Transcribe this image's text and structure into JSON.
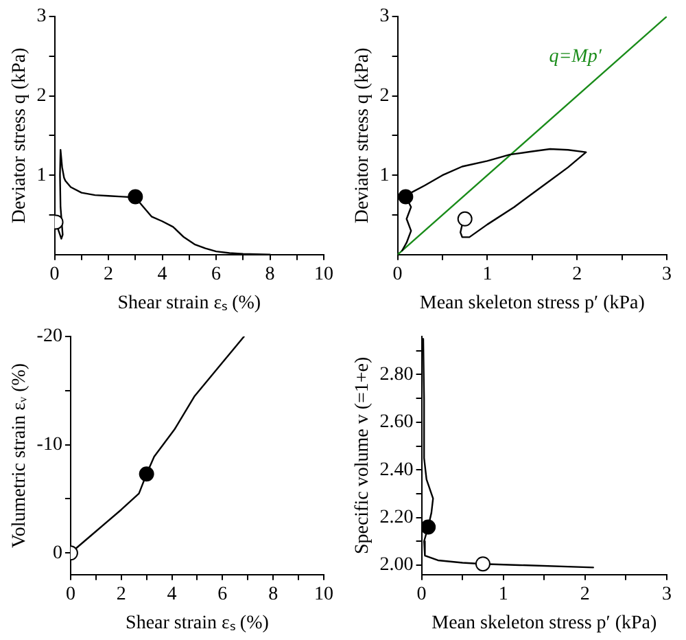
{
  "chart_data": [
    {
      "type": "line",
      "xlabel": "Shear strain εₛ (%)",
      "ylabel": "Deviator stress q (kPa)",
      "xlim": [
        0,
        10
      ],
      "ylim": [
        0,
        3
      ],
      "xticks": [
        0,
        {
          "value": 1,
          "label": null
        },
        2,
        {
          "value": 3,
          "label": null
        },
        4,
        {
          "value": 5,
          "label": null
        },
        6,
        {
          "value": 7,
          "label": null
        },
        8,
        {
          "value": 9,
          "label": null
        },
        10
      ],
      "yticks": [
        {
          "value": 0.5,
          "label": null
        },
        1,
        {
          "value": 1.5,
          "label": null
        },
        2,
        {
          "value": 2.5,
          "label": null
        },
        3
      ],
      "grid": false,
      "legend": false,
      "series": [
        {
          "color": "#000000",
          "x": [
            0.05,
            0.15,
            0.25,
            0.3,
            0.22,
            0.2,
            0.22,
            0.28,
            0.35,
            0.4,
            0.6,
            1,
            1.5,
            2,
            2.5,
            3,
            3.3,
            3.6,
            4,
            4.4,
            4.8,
            5.2,
            5.6,
            6,
            6.5,
            7,
            8
          ],
          "values": [
            0.41,
            0.3,
            0.2,
            0.25,
            0.6,
            1.0,
            1.32,
            1.1,
            0.97,
            0.93,
            0.85,
            0.78,
            0.75,
            0.74,
            0.73,
            0.72,
            0.6,
            0.48,
            0.42,
            0.35,
            0.22,
            0.13,
            0.08,
            0.04,
            0.02,
            0.01,
            0
          ]
        },
        {
          "type": "scatter",
          "marker": "circle",
          "color": "#ffffff",
          "x": [
            0.05
          ],
          "values": [
            0.41
          ]
        },
        {
          "type": "scatter",
          "marker": "circle",
          "color": "#000000",
          "x": [
            3
          ],
          "values": [
            0.73
          ]
        }
      ]
    },
    {
      "type": "line",
      "xlabel": "Mean skeleton stress p′ (kPa)",
      "ylabel": "Deviator stress q (kPa)",
      "xlim": [
        0,
        3
      ],
      "ylim": [
        0,
        3
      ],
      "xticks": [
        0,
        {
          "value": 0.5,
          "label": null
        },
        1,
        {
          "value": 1.5,
          "label": null
        },
        2,
        {
          "value": 2.5,
          "label": null
        },
        3
      ],
      "yticks": [
        {
          "value": 0.5,
          "label": null
        },
        1,
        {
          "value": 1.5,
          "label": null
        },
        2,
        {
          "value": 2.5,
          "label": null
        },
        3
      ],
      "grid": false,
      "legend": false,
      "annotations": [
        "q=Mp′"
      ],
      "series": [
        {
          "color": "#000000",
          "x": [
            0.75,
            0.72,
            0.7,
            0.72,
            0.8,
            1.0,
            1.3,
            1.6,
            1.9,
            2.1,
            1.9,
            1.7,
            1.5,
            1.25,
            1.0,
            0.72,
            0.5,
            0.3,
            0.15,
            0.09,
            0.15,
            0.1,
            0.15,
            0.1,
            0.05
          ],
          "values": [
            0.45,
            0.38,
            0.28,
            0.22,
            0.22,
            0.38,
            0.6,
            0.85,
            1.1,
            1.29,
            1.32,
            1.33,
            1.3,
            1.26,
            1.18,
            1.11,
            1.0,
            0.87,
            0.78,
            0.73,
            0.6,
            0.45,
            0.3,
            0.15,
            0.05
          ]
        },
        {
          "color": "#1a8c1a",
          "x": [
            0,
            3
          ],
          "values": [
            0,
            3
          ]
        },
        {
          "type": "scatter",
          "marker": "circle",
          "color": "#ffffff",
          "x": [
            0.75
          ],
          "values": [
            0.45
          ]
        },
        {
          "type": "scatter",
          "marker": "circle",
          "color": "#000000",
          "x": [
            0.09
          ],
          "values": [
            0.73
          ]
        }
      ]
    },
    {
      "type": "line",
      "xlabel": "Shear strain εₛ (%)",
      "ylabel": "Volumetric strain εᵥ (%)",
      "xlim": [
        0,
        10
      ],
      "ylim": [
        2,
        -20
      ],
      "xticks": [
        0,
        {
          "value": 1,
          "label": null
        },
        2,
        {
          "value": 3,
          "label": null
        },
        4,
        {
          "value": 5,
          "label": null
        },
        6,
        {
          "value": 7,
          "label": null
        },
        8,
        {
          "value": 9,
          "label": null
        },
        10
      ],
      "yticks": [
        0,
        {
          "value": -5,
          "label": null
        },
        -10,
        {
          "value": -15,
          "label": null
        },
        -20
      ],
      "grid": false,
      "legend": false,
      "series": [
        {
          "color": "#000000",
          "x": [
            0,
            0.5,
            1,
            2,
            2.7,
            3,
            3.3,
            4.1,
            4.9,
            6,
            6.85
          ],
          "values": [
            0,
            -1,
            -2,
            -4,
            -5.5,
            -7.3,
            -8.9,
            -11.4,
            -14.5,
            -17.6,
            -20
          ]
        },
        {
          "type": "scatter",
          "marker": "circle",
          "color": "#ffffff",
          "x": [
            0
          ],
          "values": [
            0
          ]
        },
        {
          "type": "scatter",
          "marker": "circle",
          "color": "#000000",
          "x": [
            3
          ],
          "values": [
            -7.3
          ]
        }
      ]
    },
    {
      "type": "line",
      "xlabel": "Mean skeleton stress p′ (kPa)",
      "ylabel": "Specific volume v (=1+e)",
      "xlim": [
        0,
        3
      ],
      "ylim": [
        1.96,
        2.96
      ],
      "xticks": [
        0,
        {
          "value": 0.5,
          "label": null
        },
        1,
        {
          "value": 1.5,
          "label": null
        },
        2,
        {
          "value": 2.5,
          "label": null
        },
        3
      ],
      "yticks": [
        {
          "value": 2,
          "label": "2.00"
        },
        {
          "value": 2.1,
          "label": null
        },
        {
          "value": 2.2,
          "label": "2.20"
        },
        {
          "value": 2.3,
          "label": null
        },
        {
          "value": 2.4,
          "label": "2.40"
        },
        {
          "value": 2.5,
          "label": null
        },
        {
          "value": 2.6,
          "label": "2.60"
        },
        {
          "value": 2.7,
          "label": null
        },
        {
          "value": 2.8,
          "label": "2.80"
        },
        {
          "value": 2.9,
          "label": null
        }
      ],
      "grid": false,
      "legend": false,
      "series": [
        {
          "color": "#000000",
          "x": [
            0.02,
            0.03,
            0.03,
            0.06,
            0.14,
            0.12,
            0.08,
            0.03,
            0.04,
            0.2,
            0.5,
            0.75,
            1.2,
            2.1
          ],
          "values": [
            2.95,
            2.7,
            2.45,
            2.36,
            2.28,
            2.22,
            2.16,
            2.1,
            2.04,
            2.02,
            2.01,
            2.005,
            2.0,
            1.99
          ]
        },
        {
          "type": "scatter",
          "marker": "circle",
          "color": "#ffffff",
          "x": [
            0.75
          ],
          "values": [
            2.005
          ]
        },
        {
          "type": "scatter",
          "marker": "circle",
          "color": "#000000",
          "x": [
            0.08
          ],
          "values": [
            2.16
          ]
        }
      ]
    }
  ]
}
